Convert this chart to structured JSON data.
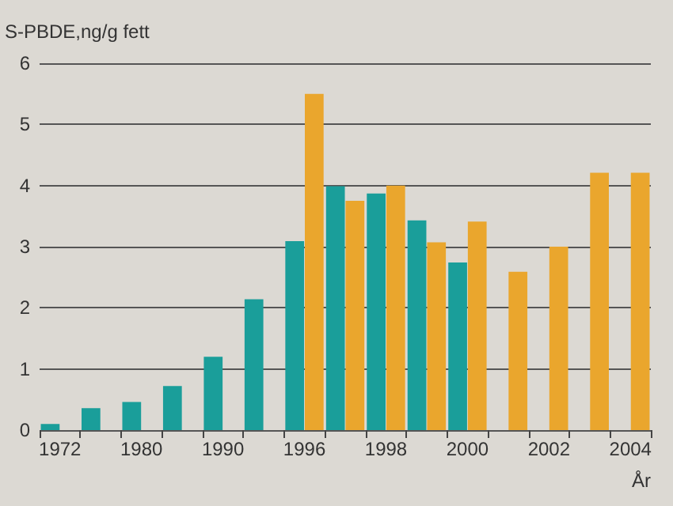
{
  "chart_data": {
    "type": "bar",
    "ylabel": "S-PBDE,ng/g fett",
    "xlabel": "År",
    "categories": [
      "1972",
      null,
      "1980",
      null,
      "1990",
      null,
      "1996",
      null,
      "1998",
      null,
      "2000",
      null,
      "2002",
      null,
      "2004"
    ],
    "series": [
      {
        "color": "#1a9e9a",
        "values": [
          0.1,
          0.36,
          0.46,
          0.72,
          1.2,
          2.14,
          3.09,
          3.99,
          3.87,
          3.43,
          2.74,
          null,
          null,
          null,
          null
        ]
      },
      {
        "color": "#eaa62d",
        "values": [
          null,
          null,
          null,
          null,
          null,
          null,
          5.5,
          3.75,
          4.0,
          3.07,
          3.41,
          2.59,
          3.0,
          4.21,
          4.21
        ]
      }
    ],
    "ylim": [
      0,
      6
    ],
    "yticks": [
      0,
      1,
      2,
      3,
      4,
      5,
      6
    ],
    "grid": "y"
  }
}
